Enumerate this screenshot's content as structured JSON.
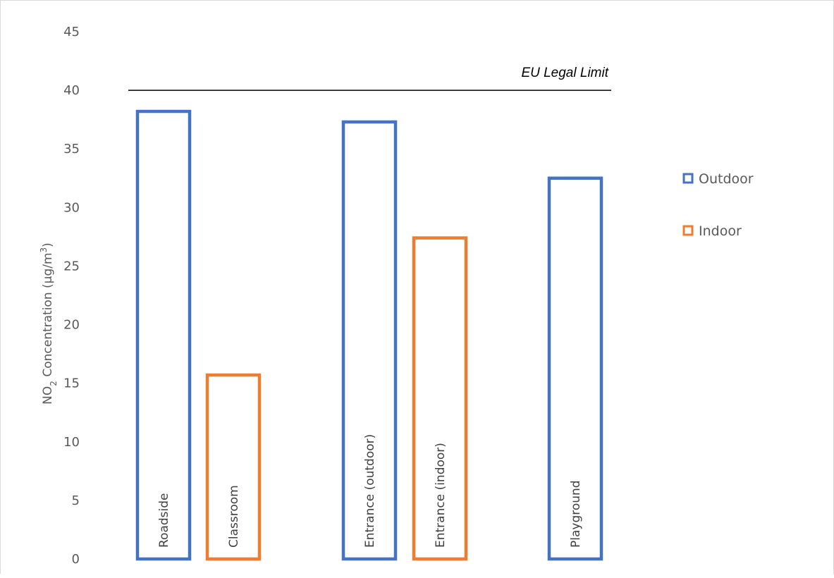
{
  "chart_data": {
    "type": "bar",
    "categories": [
      "Roadside",
      "Classroom",
      "Entrance (outdoor)",
      "Entrance (indoor)",
      "Playground"
    ],
    "values": [
      38.2,
      15.7,
      37.3,
      27.4,
      32.5
    ],
    "bar_series": [
      "Outdoor",
      "Indoor",
      "Outdoor",
      "Indoor",
      "Outdoor"
    ],
    "series": [
      {
        "name": "Outdoor",
        "color": "#4472c4"
      },
      {
        "name": "Indoor",
        "color": "#ed7d31"
      }
    ],
    "ylabel_main": "NO",
    "ylabel_sub": "2",
    "ylabel_rest": " Concentration (µg/m",
    "ylabel_sup": "3",
    "ylabel_end": ")",
    "ylim": [
      0,
      45
    ],
    "yticks": [
      0,
      5,
      10,
      15,
      20,
      25,
      30,
      35,
      40,
      45
    ],
    "reference_line": {
      "label": "EU Legal Limit",
      "value": 40
    },
    "legend_position": "right",
    "grid": false
  }
}
